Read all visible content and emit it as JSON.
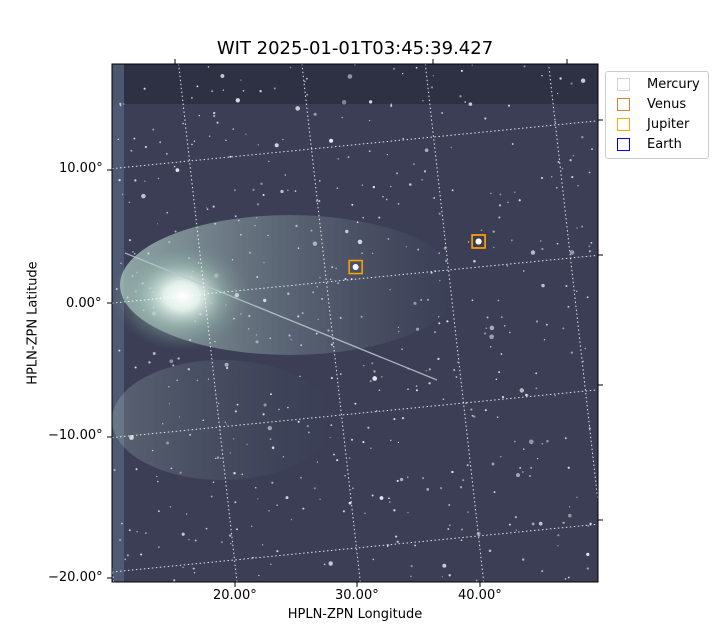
{
  "chart_data": {
    "type": "image",
    "title": "WIT 2025-01-01T03:45:39.427",
    "xlabel": "HPLN-ZPN Longitude",
    "ylabel": "HPLN-ZPN Latitude",
    "xticks": [
      "20.00°",
      "30.00°",
      "40.00°"
    ],
    "yticks": [
      "10.00°",
      "0.00°",
      "−10.00°",
      "−20.00°"
    ],
    "grid": true,
    "colormap": "bone",
    "legend_position": "outside-top-right",
    "legend": [
      {
        "name": "Mercury",
        "color": "#d3d3d3"
      },
      {
        "name": "Venus",
        "color": "#cd853f"
      },
      {
        "name": "Jupiter",
        "color": "#ffa500"
      },
      {
        "name": "Earth",
        "color": "#0000ff"
      }
    ],
    "markers": [
      {
        "name": "Venus",
        "lon": 42.7,
        "lat": 1.9
      },
      {
        "name": "Jupiter",
        "lon": 42.7,
        "lat": 1.9
      },
      {
        "name": "Jupiter",
        "lon": 32.5,
        "lat": 0.9
      }
    ]
  }
}
